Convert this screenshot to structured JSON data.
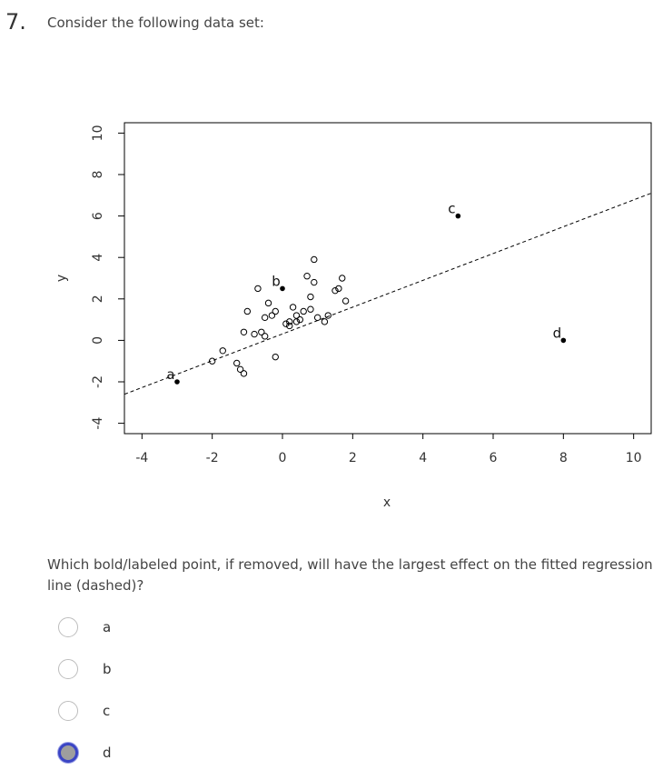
{
  "question": {
    "number": "7.",
    "title": "Consider the following data set:",
    "prompt": "Which bold/labeled point, if removed, will have the largest effect on the fitted regression line (dashed)?",
    "options": [
      {
        "label": "a",
        "selected": false
      },
      {
        "label": "b",
        "selected": false
      },
      {
        "label": "c",
        "selected": false
      },
      {
        "label": "d",
        "selected": true
      }
    ],
    "selected_color": "#9e9e9e",
    "selected_ring_color": "#3b45c4"
  },
  "chart_data": {
    "type": "scatter",
    "title": "",
    "xlabel": "x",
    "ylabel": "y",
    "xlim": [
      -4.5,
      10.5
    ],
    "ylim": [
      -4.5,
      10.5
    ],
    "x_ticks": [
      -4,
      -2,
      0,
      2,
      4,
      6,
      8,
      10
    ],
    "y_ticks": [
      -4,
      -2,
      0,
      2,
      4,
      6,
      8,
      10
    ],
    "grid": false,
    "regression_line": {
      "style": "dashed",
      "x": [
        -4.5,
        10.5
      ],
      "y": [
        -2.6,
        7.1
      ]
    },
    "labeled_points": [
      {
        "label": "a",
        "x": -3.0,
        "y": -2.0
      },
      {
        "label": "b",
        "x": 0.0,
        "y": 2.5
      },
      {
        "label": "c",
        "x": 5.0,
        "y": 6.0
      },
      {
        "label": "d",
        "x": 8.0,
        "y": 0.0
      }
    ],
    "series": [
      {
        "marker": "open-circle",
        "x": [
          -2.0,
          -1.7,
          -1.2,
          -1.1,
          -1.3,
          -1.0,
          -1.1,
          -0.7,
          -0.4,
          -0.5,
          -0.3,
          -0.2,
          -0.8,
          -0.6,
          -0.5,
          -0.2,
          0.1,
          0.2,
          0.3,
          0.4,
          0.5,
          0.6,
          0.8,
          0.9,
          1.0,
          1.2,
          1.3,
          1.5,
          1.6,
          1.7,
          0.7,
          1.8,
          0.8,
          0.9,
          0.2,
          0.4
        ],
        "y": [
          -1.0,
          -0.5,
          -1.4,
          -1.6,
          -1.1,
          1.4,
          0.4,
          2.5,
          1.8,
          1.1,
          1.2,
          -0.8,
          0.3,
          0.4,
          0.2,
          1.4,
          0.8,
          0.9,
          1.6,
          1.2,
          1.0,
          1.4,
          2.1,
          3.9,
          1.1,
          0.9,
          1.2,
          2.4,
          2.5,
          3.0,
          3.1,
          1.9,
          1.5,
          2.8,
          0.7,
          0.9
        ]
      }
    ]
  }
}
